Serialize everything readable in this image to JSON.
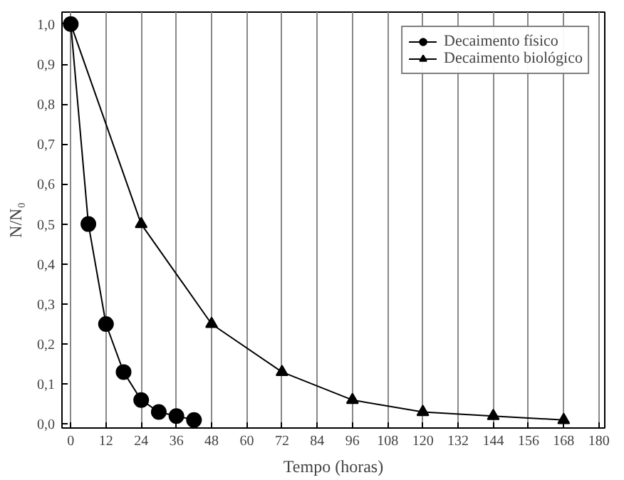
{
  "chart_data": {
    "type": "line",
    "xlabel": "Tempo (horas)",
    "ylabel": "N/N₀",
    "series": [
      {
        "name": "Decaimento físico",
        "color": "#000000",
        "marker": "circle",
        "x": [
          0,
          6,
          12,
          18,
          24,
          30,
          36,
          42
        ],
        "values": [
          1.0,
          0.5,
          0.25,
          0.13,
          0.06,
          0.03,
          0.02,
          0.01
        ]
      },
      {
        "name": "Decaimento biológico",
        "color": "#000000",
        "marker": "triangle",
        "x": [
          0,
          24,
          48,
          72,
          96,
          120,
          144,
          168
        ],
        "values": [
          1.0,
          0.5,
          0.25,
          0.13,
          0.06,
          0.03,
          0.02,
          0.01
        ]
      }
    ],
    "xlim": [
      -3,
      182
    ],
    "ylim": [
      -0.01,
      1.03
    ],
    "xticks": [
      0,
      12,
      24,
      36,
      48,
      60,
      72,
      84,
      96,
      108,
      120,
      132,
      144,
      156,
      168,
      180
    ],
    "yticks": [
      {
        "value": 0,
        "label": "0,0"
      },
      {
        "value": 0.1,
        "label": "0,1"
      },
      {
        "value": 0.2,
        "label": "0,2"
      },
      {
        "value": 0.3,
        "label": "0,3"
      },
      {
        "value": 0.4,
        "label": "0,4"
      },
      {
        "value": 0.5,
        "label": "0,5"
      },
      {
        "value": 0.6,
        "label": "0,6"
      },
      {
        "value": 0.7,
        "label": "0,7"
      },
      {
        "value": 0.8,
        "label": "0,8"
      },
      {
        "value": 0.9,
        "label": "0,9"
      },
      {
        "value": 1.0,
        "label": "1,0"
      }
    ],
    "grid": "x",
    "legend": "top right",
    "line_style": "solid"
  }
}
